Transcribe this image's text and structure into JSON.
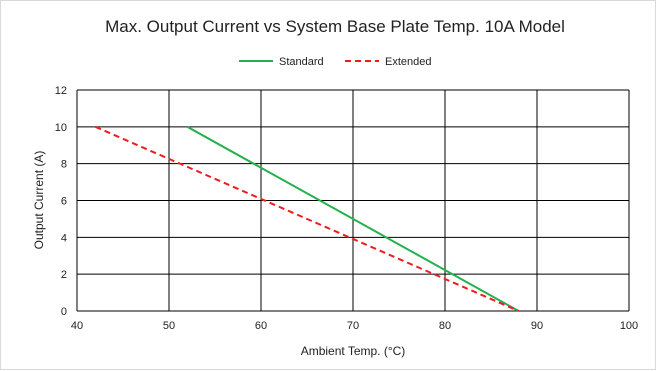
{
  "chart_data": {
    "type": "line",
    "title": "Max. Output Current vs System Base Plate Temp. 10A Model",
    "xlabel": "Ambient Temp. (°C)",
    "ylabel": "Output Current (A)",
    "xlim": [
      40,
      100
    ],
    "ylim": [
      0,
      12
    ],
    "xticks": [
      40,
      50,
      60,
      70,
      80,
      90,
      100
    ],
    "yticks": [
      0,
      2,
      4,
      6,
      8,
      10,
      12
    ],
    "grid": true,
    "legend_position": "top-center",
    "series": [
      {
        "name": "Standard",
        "color": "#22b14c",
        "dash": "solid",
        "x": [
          52,
          88
        ],
        "y": [
          10,
          0
        ]
      },
      {
        "name": "Extended",
        "color": "#ee1c1c",
        "dash": "dashed",
        "x": [
          42,
          88
        ],
        "y": [
          10,
          0
        ]
      }
    ]
  }
}
